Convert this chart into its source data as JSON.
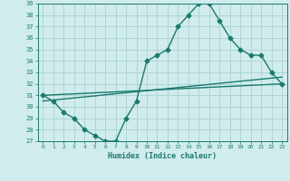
{
  "xlabel": "Humidex (Indice chaleur)",
  "x": [
    0,
    1,
    2,
    3,
    4,
    5,
    6,
    7,
    8,
    9,
    10,
    11,
    12,
    13,
    14,
    15,
    16,
    17,
    18,
    19,
    20,
    21,
    22,
    23
  ],
  "y_main": [
    31,
    30.5,
    29.5,
    29,
    28,
    27.5,
    27,
    27,
    29,
    30.5,
    34,
    34.5,
    35,
    37,
    38,
    39,
    39,
    37.5,
    36,
    35,
    34.5,
    34.5,
    33,
    32
  ],
  "y_line1": [
    31.0,
    31.04,
    31.09,
    31.13,
    31.17,
    31.22,
    31.26,
    31.3,
    31.35,
    31.39,
    31.43,
    31.48,
    31.52,
    31.57,
    31.61,
    31.65,
    31.7,
    31.74,
    31.78,
    31.83,
    31.87,
    31.91,
    31.96,
    32.0
  ],
  "y_line2": [
    30.5,
    30.59,
    30.68,
    30.77,
    30.86,
    30.95,
    31.05,
    31.14,
    31.23,
    31.32,
    31.41,
    31.5,
    31.59,
    31.68,
    31.77,
    31.86,
    31.95,
    32.05,
    32.14,
    32.23,
    32.32,
    32.41,
    32.5,
    32.59
  ],
  "line_color": "#1a7a6e",
  "bg_color": "#d0ecec",
  "grid_color": "#b0d4d4",
  "ylim": [
    27,
    39
  ],
  "yticks": [
    27,
    28,
    29,
    30,
    31,
    32,
    33,
    34,
    35,
    36,
    37,
    38,
    39
  ],
  "xticks": [
    0,
    1,
    2,
    3,
    4,
    5,
    6,
    7,
    8,
    9,
    10,
    11,
    12,
    13,
    14,
    15,
    16,
    17,
    18,
    19,
    20,
    21,
    22,
    23
  ],
  "marker": "D",
  "markersize": 2.5,
  "linewidth": 1.0
}
